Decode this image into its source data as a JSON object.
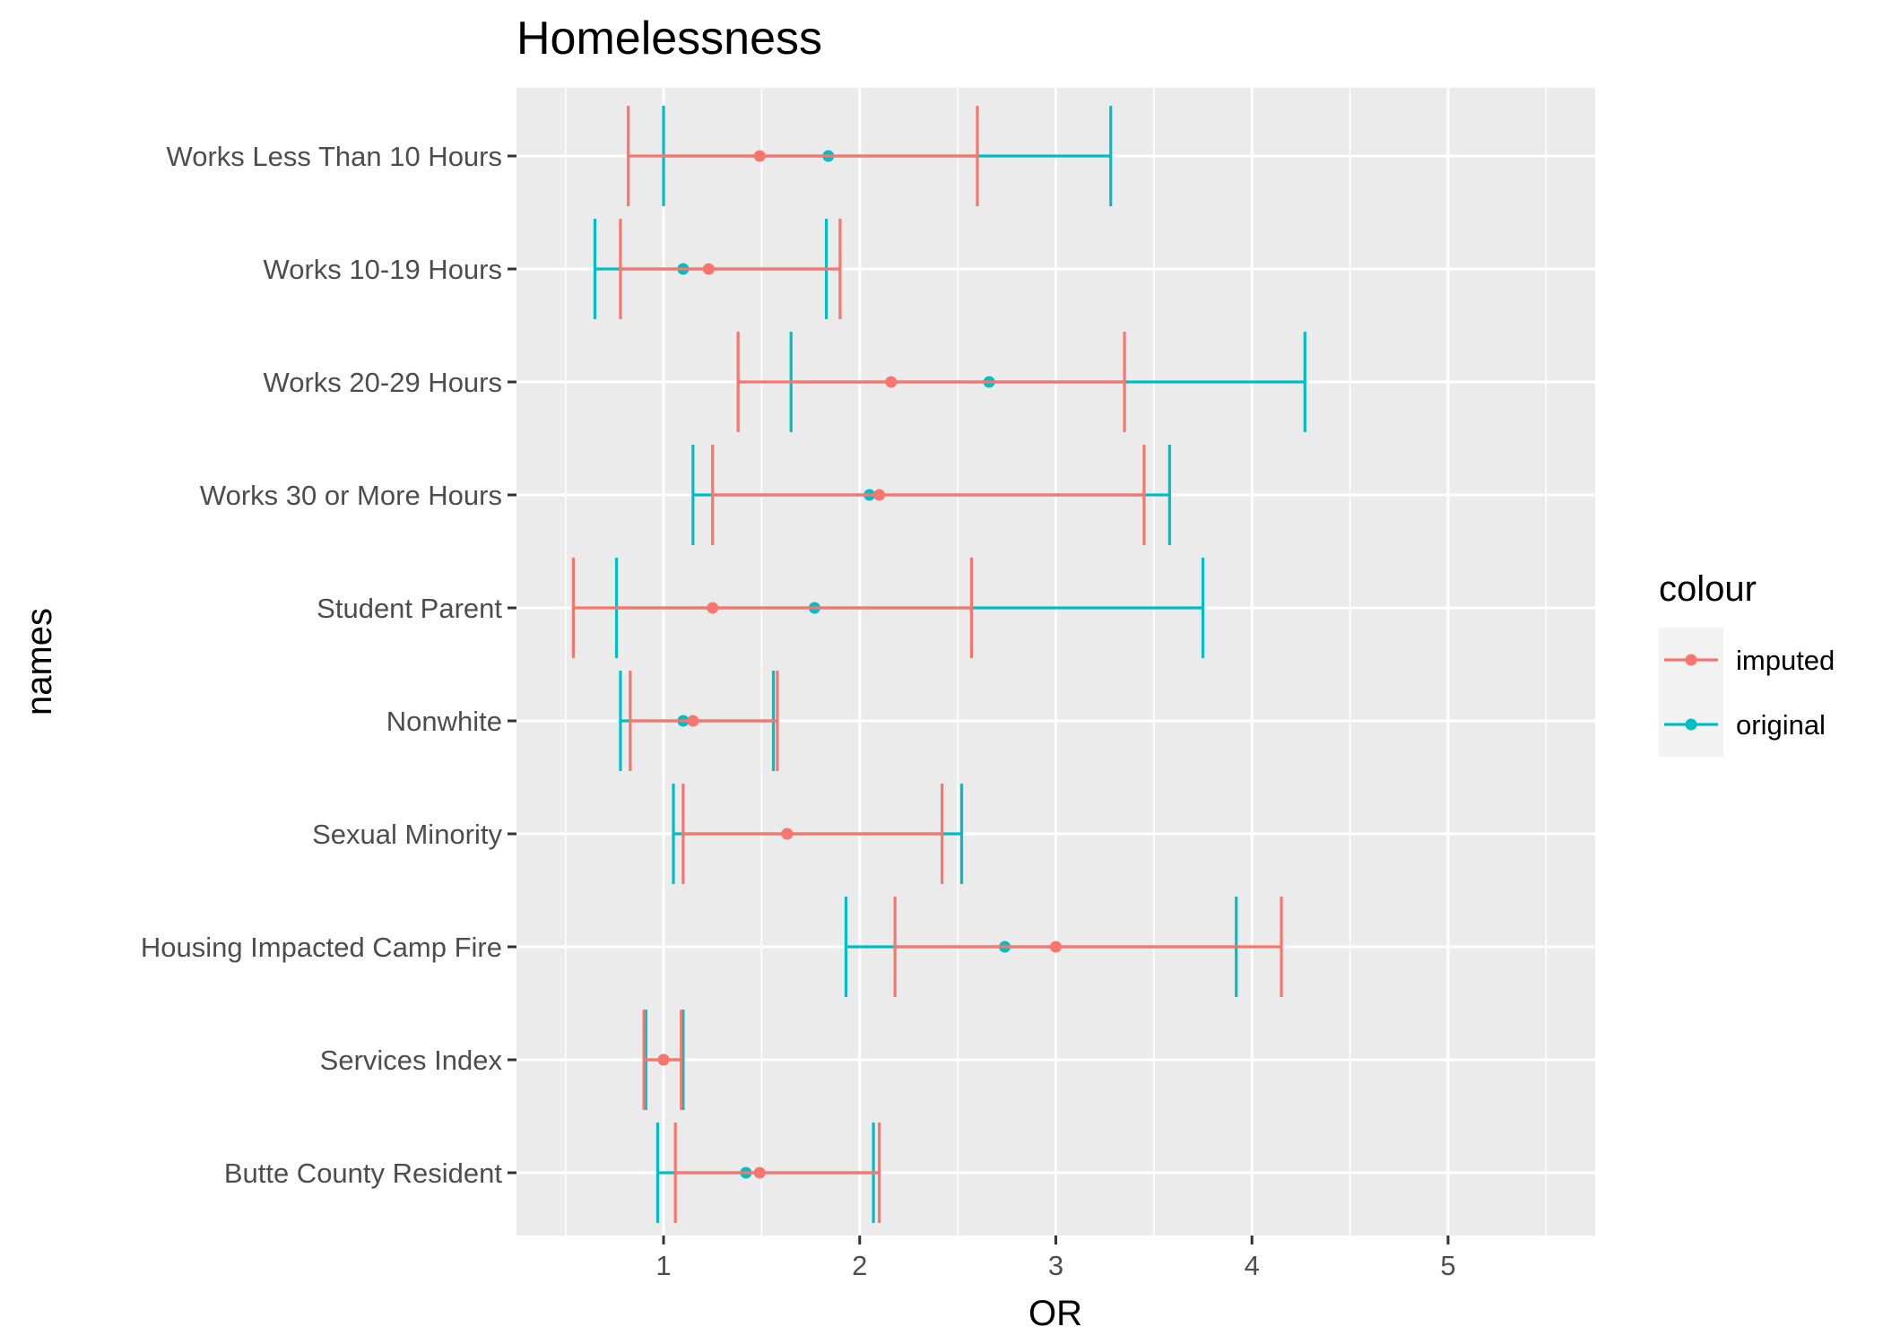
{
  "chart_data": {
    "type": "errorbar",
    "title": "Homelessness",
    "xlabel": "OR",
    "ylabel": "names",
    "xlim": [
      0.25,
      5.75
    ],
    "xticks": [
      1,
      2,
      3,
      4,
      5
    ],
    "grid": true,
    "legend": {
      "title": "colour",
      "placement": "right",
      "entries": [
        {
          "label": "imputed",
          "color": "#F8766D"
        },
        {
          "label": "original",
          "color": "#00BFC4"
        }
      ]
    },
    "categories": [
      "Works Less Than 10 Hours",
      "Works 10-19 Hours",
      "Works 20-29 Hours",
      "Works 30 or More Hours",
      "Student Parent",
      "Nonwhite",
      "Sexual Minority",
      "Housing Impacted Camp Fire",
      "Services Index",
      "Butte County Resident"
    ],
    "series": [
      {
        "name": "original",
        "color": "#00BFC4",
        "points": [
          {
            "or": 1.84,
            "lower": 1.0,
            "upper": 3.28
          },
          {
            "or": 1.1,
            "lower": 0.65,
            "upper": 1.83
          },
          {
            "or": 2.66,
            "lower": 1.65,
            "upper": 4.27
          },
          {
            "or": 2.05,
            "lower": 1.15,
            "upper": 3.58
          },
          {
            "or": 1.77,
            "lower": 0.76,
            "upper": 3.75
          },
          {
            "or": 1.1,
            "lower": 0.78,
            "upper": 1.56
          },
          {
            "or": 1.63,
            "lower": 1.05,
            "upper": 2.52
          },
          {
            "or": 2.74,
            "lower": 1.93,
            "upper": 3.92
          },
          {
            "or": 1.0,
            "lower": 0.91,
            "upper": 1.1
          },
          {
            "or": 1.42,
            "lower": 0.97,
            "upper": 2.07
          }
        ]
      },
      {
        "name": "imputed",
        "color": "#F8766D",
        "points": [
          {
            "or": 1.49,
            "lower": 0.82,
            "upper": 2.6
          },
          {
            "or": 1.23,
            "lower": 0.78,
            "upper": 1.9
          },
          {
            "or": 2.16,
            "lower": 1.38,
            "upper": 3.35
          },
          {
            "or": 2.1,
            "lower": 1.25,
            "upper": 3.45
          },
          {
            "or": 1.25,
            "lower": 0.54,
            "upper": 2.57
          },
          {
            "or": 1.15,
            "lower": 0.83,
            "upper": 1.58
          },
          {
            "or": 1.63,
            "lower": 1.1,
            "upper": 2.42
          },
          {
            "or": 3.0,
            "lower": 2.18,
            "upper": 4.15
          },
          {
            "or": 1.0,
            "lower": 0.9,
            "upper": 1.09
          },
          {
            "or": 1.49,
            "lower": 1.06,
            "upper": 2.1
          }
        ]
      }
    ]
  }
}
